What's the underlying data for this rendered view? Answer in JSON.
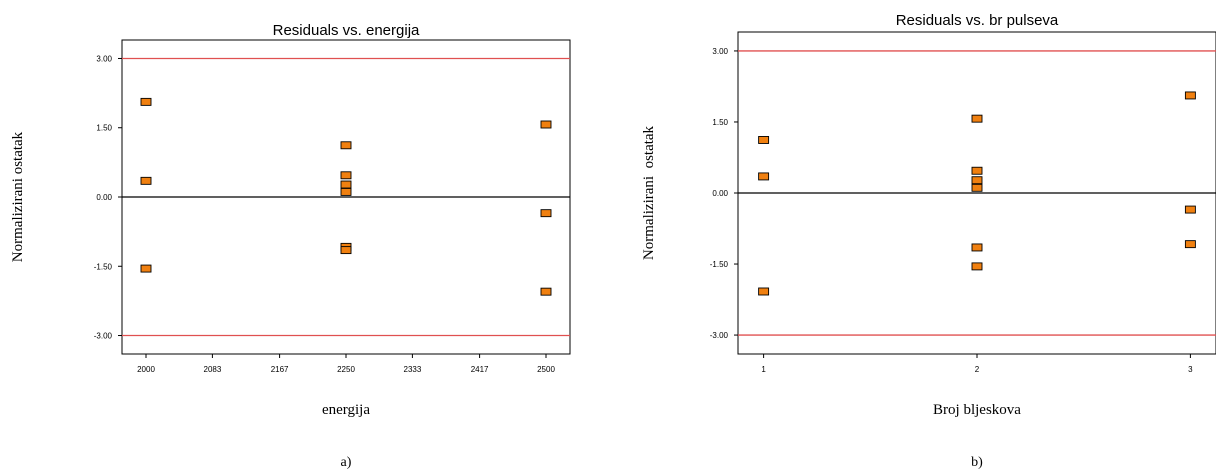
{
  "chart_data": [
    {
      "type": "scatter",
      "title": "Residuals vs. energija",
      "xlabel": "energija",
      "ylabel": "Normalizirani ostatak",
      "panel_label": "a)",
      "xlim": [
        1970,
        2530
      ],
      "ylim": [
        -3.4,
        3.4
      ],
      "xticks": [
        "2000",
        "2083",
        "2167",
        "2250",
        "2333",
        "2417",
        "2500"
      ],
      "yticks": [
        "3.00",
        "1.50",
        "0.00",
        "-1.50",
        "-3.00"
      ],
      "reference_lines": [
        {
          "y": 3.0,
          "color": "#e05050"
        },
        {
          "y": 0.0,
          "color": "#000000"
        },
        {
          "y": -3.0,
          "color": "#e05050"
        }
      ],
      "marker_color": "#f08010",
      "points": [
        {
          "x": 2000,
          "y": 2.06
        },
        {
          "x": 2000,
          "y": 0.35
        },
        {
          "x": 2000,
          "y": -1.55
        },
        {
          "x": 2250,
          "y": 1.12
        },
        {
          "x": 2250,
          "y": 0.47
        },
        {
          "x": 2250,
          "y": 0.27
        },
        {
          "x": 2250,
          "y": 0.11
        },
        {
          "x": 2250,
          "y": -1.08
        },
        {
          "x": 2250,
          "y": -1.15
        },
        {
          "x": 2500,
          "y": 1.57
        },
        {
          "x": 2500,
          "y": -0.35
        },
        {
          "x": 2500,
          "y": -2.05
        }
      ]
    },
    {
      "type": "scatter",
      "title": "Residuals vs. br pulseva",
      "xlabel": "Broj bljeskova",
      "ylabel": "Normalizirani  ostatak",
      "panel_label": "b)",
      "xlim": [
        0.88,
        3.12
      ],
      "ylim": [
        -3.4,
        3.4
      ],
      "xticks": [
        "1",
        "2",
        "3"
      ],
      "yticks": [
        "3.00",
        "1.50",
        "0.00",
        "-1.50",
        "-3.00"
      ],
      "reference_lines": [
        {
          "y": 3.0,
          "color": "#e05050"
        },
        {
          "y": 0.0,
          "color": "#000000"
        },
        {
          "y": -3.0,
          "color": "#e05050"
        }
      ],
      "marker_color": "#f08010",
      "points": [
        {
          "x": 1,
          "y": 1.12
        },
        {
          "x": 1,
          "y": 0.35
        },
        {
          "x": 1,
          "y": -2.08
        },
        {
          "x": 2,
          "y": 1.57
        },
        {
          "x": 2,
          "y": 0.47
        },
        {
          "x": 2,
          "y": 0.27
        },
        {
          "x": 2,
          "y": 0.11
        },
        {
          "x": 2,
          "y": -1.15
        },
        {
          "x": 2,
          "y": -1.55
        },
        {
          "x": 3,
          "y": 2.06
        },
        {
          "x": 3,
          "y": -0.35
        },
        {
          "x": 3,
          "y": -1.08
        }
      ]
    }
  ]
}
